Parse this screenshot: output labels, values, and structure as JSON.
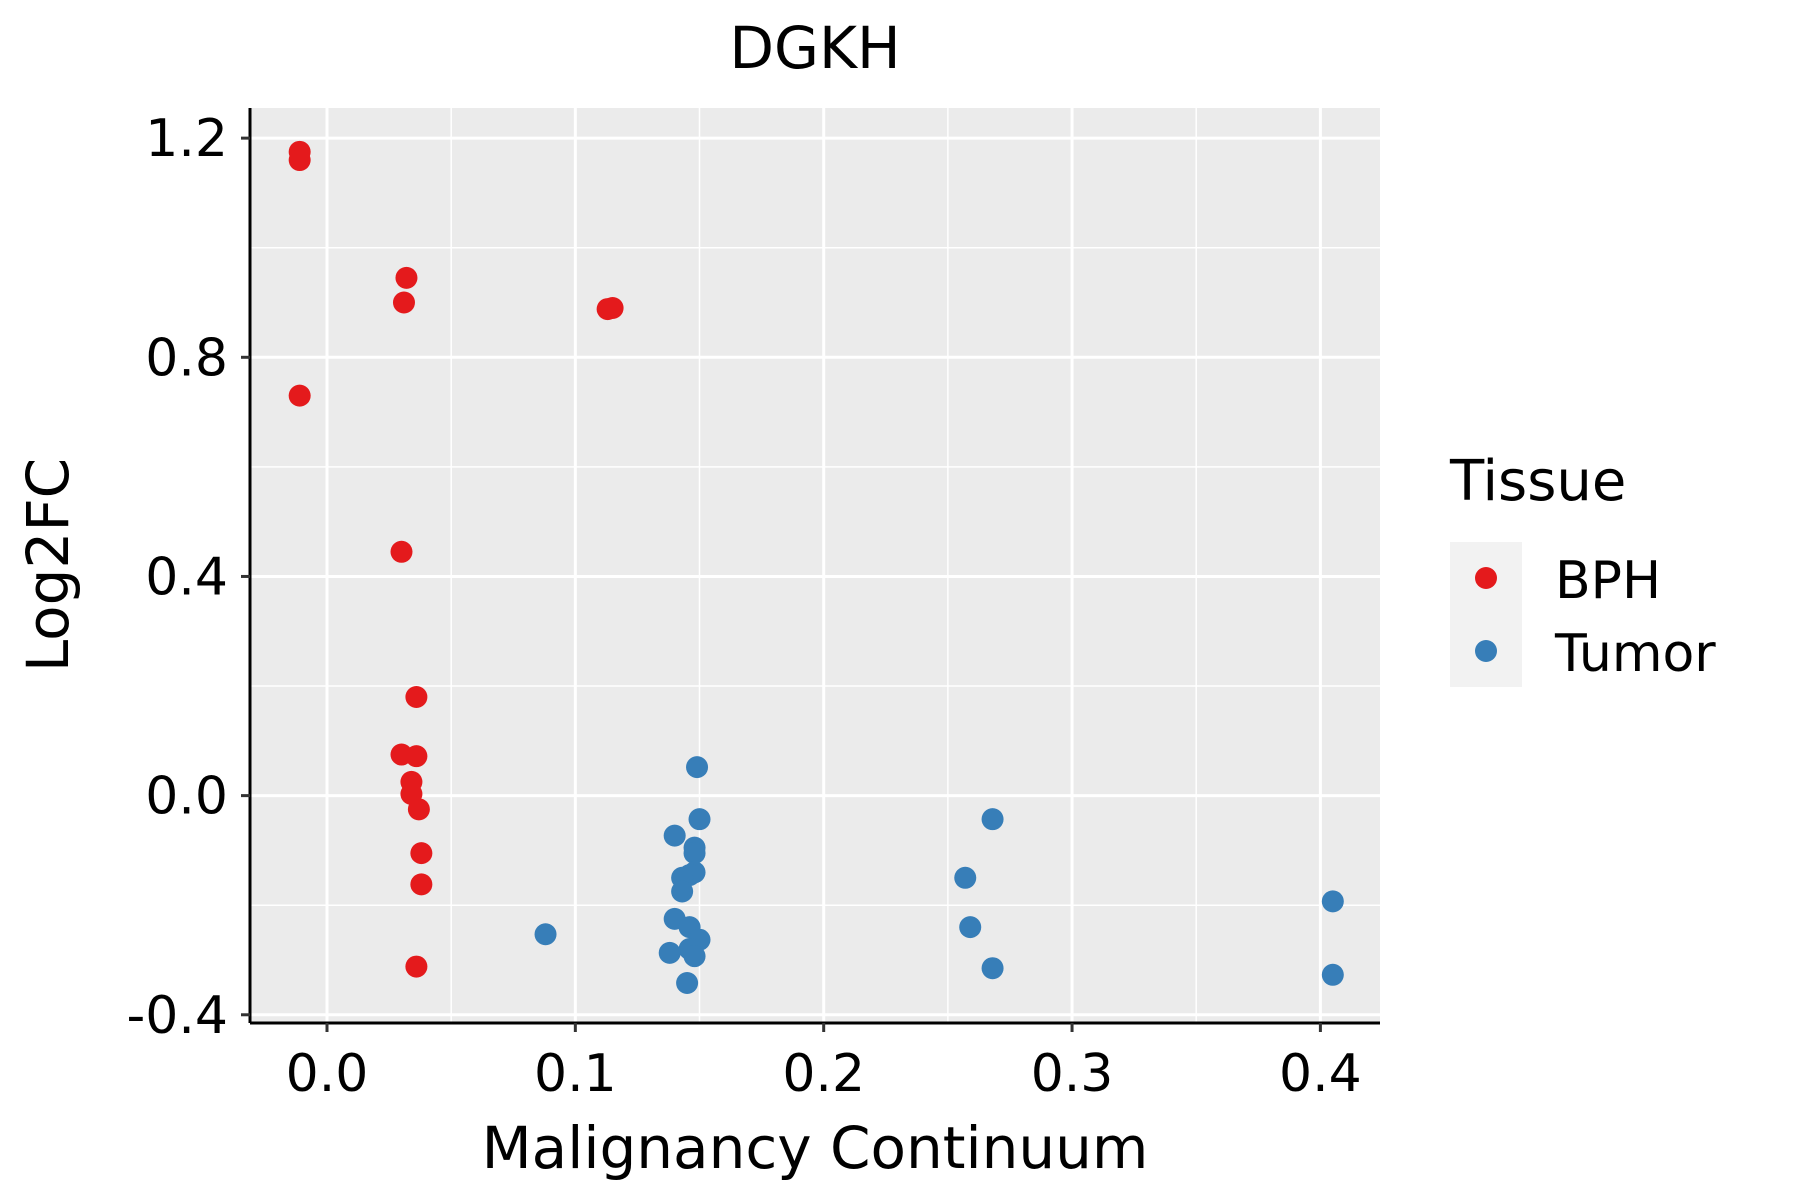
{
  "chart_data": {
    "type": "scatter",
    "title": "DGKH",
    "xlabel": "Malignancy Continuum",
    "ylabel": "Log2FC",
    "xlim": [
      -0.031,
      0.424
    ],
    "ylim": [
      -0.415,
      1.255
    ],
    "x_ticks": [
      0.0,
      0.1,
      0.2,
      0.3,
      0.4
    ],
    "x_tick_labels": [
      "0.0",
      "0.1",
      "0.2",
      "0.3",
      "0.4"
    ],
    "y_ticks": [
      -0.4,
      0.0,
      0.4,
      0.8,
      1.2
    ],
    "y_tick_labels": [
      "-0.4",
      "0.0",
      "0.4",
      "0.8",
      "1.2"
    ],
    "grid": true,
    "legend_position": "right",
    "legend_title": "Tissue",
    "series": [
      {
        "name": "BPH",
        "color": "#E41A1C",
        "points": [
          {
            "x": -0.011,
            "y": 1.175
          },
          {
            "x": -0.011,
            "y": 1.16
          },
          {
            "x": -0.011,
            "y": 0.73
          },
          {
            "x": 0.032,
            "y": 0.945
          },
          {
            "x": 0.031,
            "y": 0.9
          },
          {
            "x": 0.03,
            "y": 0.445
          },
          {
            "x": 0.036,
            "y": 0.18
          },
          {
            "x": 0.03,
            "y": 0.075
          },
          {
            "x": 0.036,
            "y": 0.072
          },
          {
            "x": 0.034,
            "y": 0.025
          },
          {
            "x": 0.034,
            "y": 0.003
          },
          {
            "x": 0.037,
            "y": -0.025
          },
          {
            "x": 0.038,
            "y": -0.105
          },
          {
            "x": 0.038,
            "y": -0.162
          },
          {
            "x": 0.036,
            "y": -0.312
          },
          {
            "x": 0.113,
            "y": 0.888
          },
          {
            "x": 0.115,
            "y": 0.89
          }
        ]
      },
      {
        "name": "Tumor",
        "color": "#377EB8",
        "points": [
          {
            "x": 0.088,
            "y": -0.253
          },
          {
            "x": 0.149,
            "y": 0.052
          },
          {
            "x": 0.15,
            "y": -0.043
          },
          {
            "x": 0.14,
            "y": -0.073
          },
          {
            "x": 0.148,
            "y": -0.095
          },
          {
            "x": 0.148,
            "y": -0.105
          },
          {
            "x": 0.148,
            "y": -0.14
          },
          {
            "x": 0.146,
            "y": -0.145
          },
          {
            "x": 0.143,
            "y": -0.15
          },
          {
            "x": 0.143,
            "y": -0.175
          },
          {
            "x": 0.14,
            "y": -0.225
          },
          {
            "x": 0.146,
            "y": -0.24
          },
          {
            "x": 0.15,
            "y": -0.263
          },
          {
            "x": 0.146,
            "y": -0.28
          },
          {
            "x": 0.138,
            "y": -0.287
          },
          {
            "x": 0.148,
            "y": -0.293
          },
          {
            "x": 0.145,
            "y": -0.342
          },
          {
            "x": 0.268,
            "y": -0.043
          },
          {
            "x": 0.257,
            "y": -0.15
          },
          {
            "x": 0.259,
            "y": -0.24
          },
          {
            "x": 0.268,
            "y": -0.315
          },
          {
            "x": 0.405,
            "y": -0.193
          },
          {
            "x": 0.405,
            "y": -0.327
          }
        ]
      }
    ]
  }
}
